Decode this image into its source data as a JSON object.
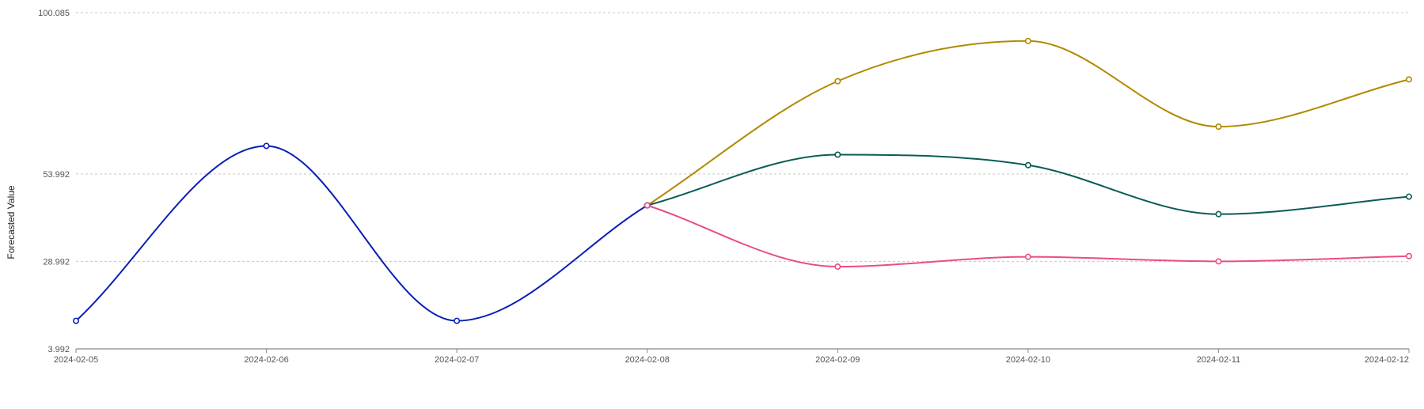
{
  "chart_data": {
    "type": "line",
    "title": "",
    "xlabel": "",
    "ylabel": "Forecasted Value",
    "x": [
      "2024-02-05",
      "2024-02-06",
      "2024-02-07",
      "2024-02-08",
      "2024-02-09",
      "2024-02-10",
      "2024-02-11",
      "2024-02-12"
    ],
    "ylim": [
      3.992,
      100.085
    ],
    "yticks": [
      "3.992",
      "28.992",
      "53.992",
      "100.085"
    ],
    "grid": true,
    "legend": "none",
    "series": [
      {
        "color": "#0a1fb4",
        "x": [
          "2024-02-05",
          "2024-02-06",
          "2024-02-07",
          "2024-02-08"
        ],
        "values": [
          12,
          62,
          12,
          45
        ]
      },
      {
        "color": "#b08a00",
        "x": [
          "2024-02-08",
          "2024-02-09",
          "2024-02-10",
          "2024-02-11",
          "2024-02-12"
        ],
        "values": [
          45,
          80.5,
          92,
          67.5,
          81
        ]
      },
      {
        "color": "#0b5c57",
        "x": [
          "2024-02-08",
          "2024-02-09",
          "2024-02-10",
          "2024-02-11",
          "2024-02-12"
        ],
        "values": [
          45,
          59.5,
          56.5,
          42.5,
          47.5
        ]
      },
      {
        "color": "#ea4c89",
        "x": [
          "2024-02-08",
          "2024-02-09",
          "2024-02-10",
          "2024-02-11",
          "2024-02-12"
        ],
        "values": [
          45,
          27.5,
          30.3,
          29,
          30.5
        ]
      }
    ]
  }
}
